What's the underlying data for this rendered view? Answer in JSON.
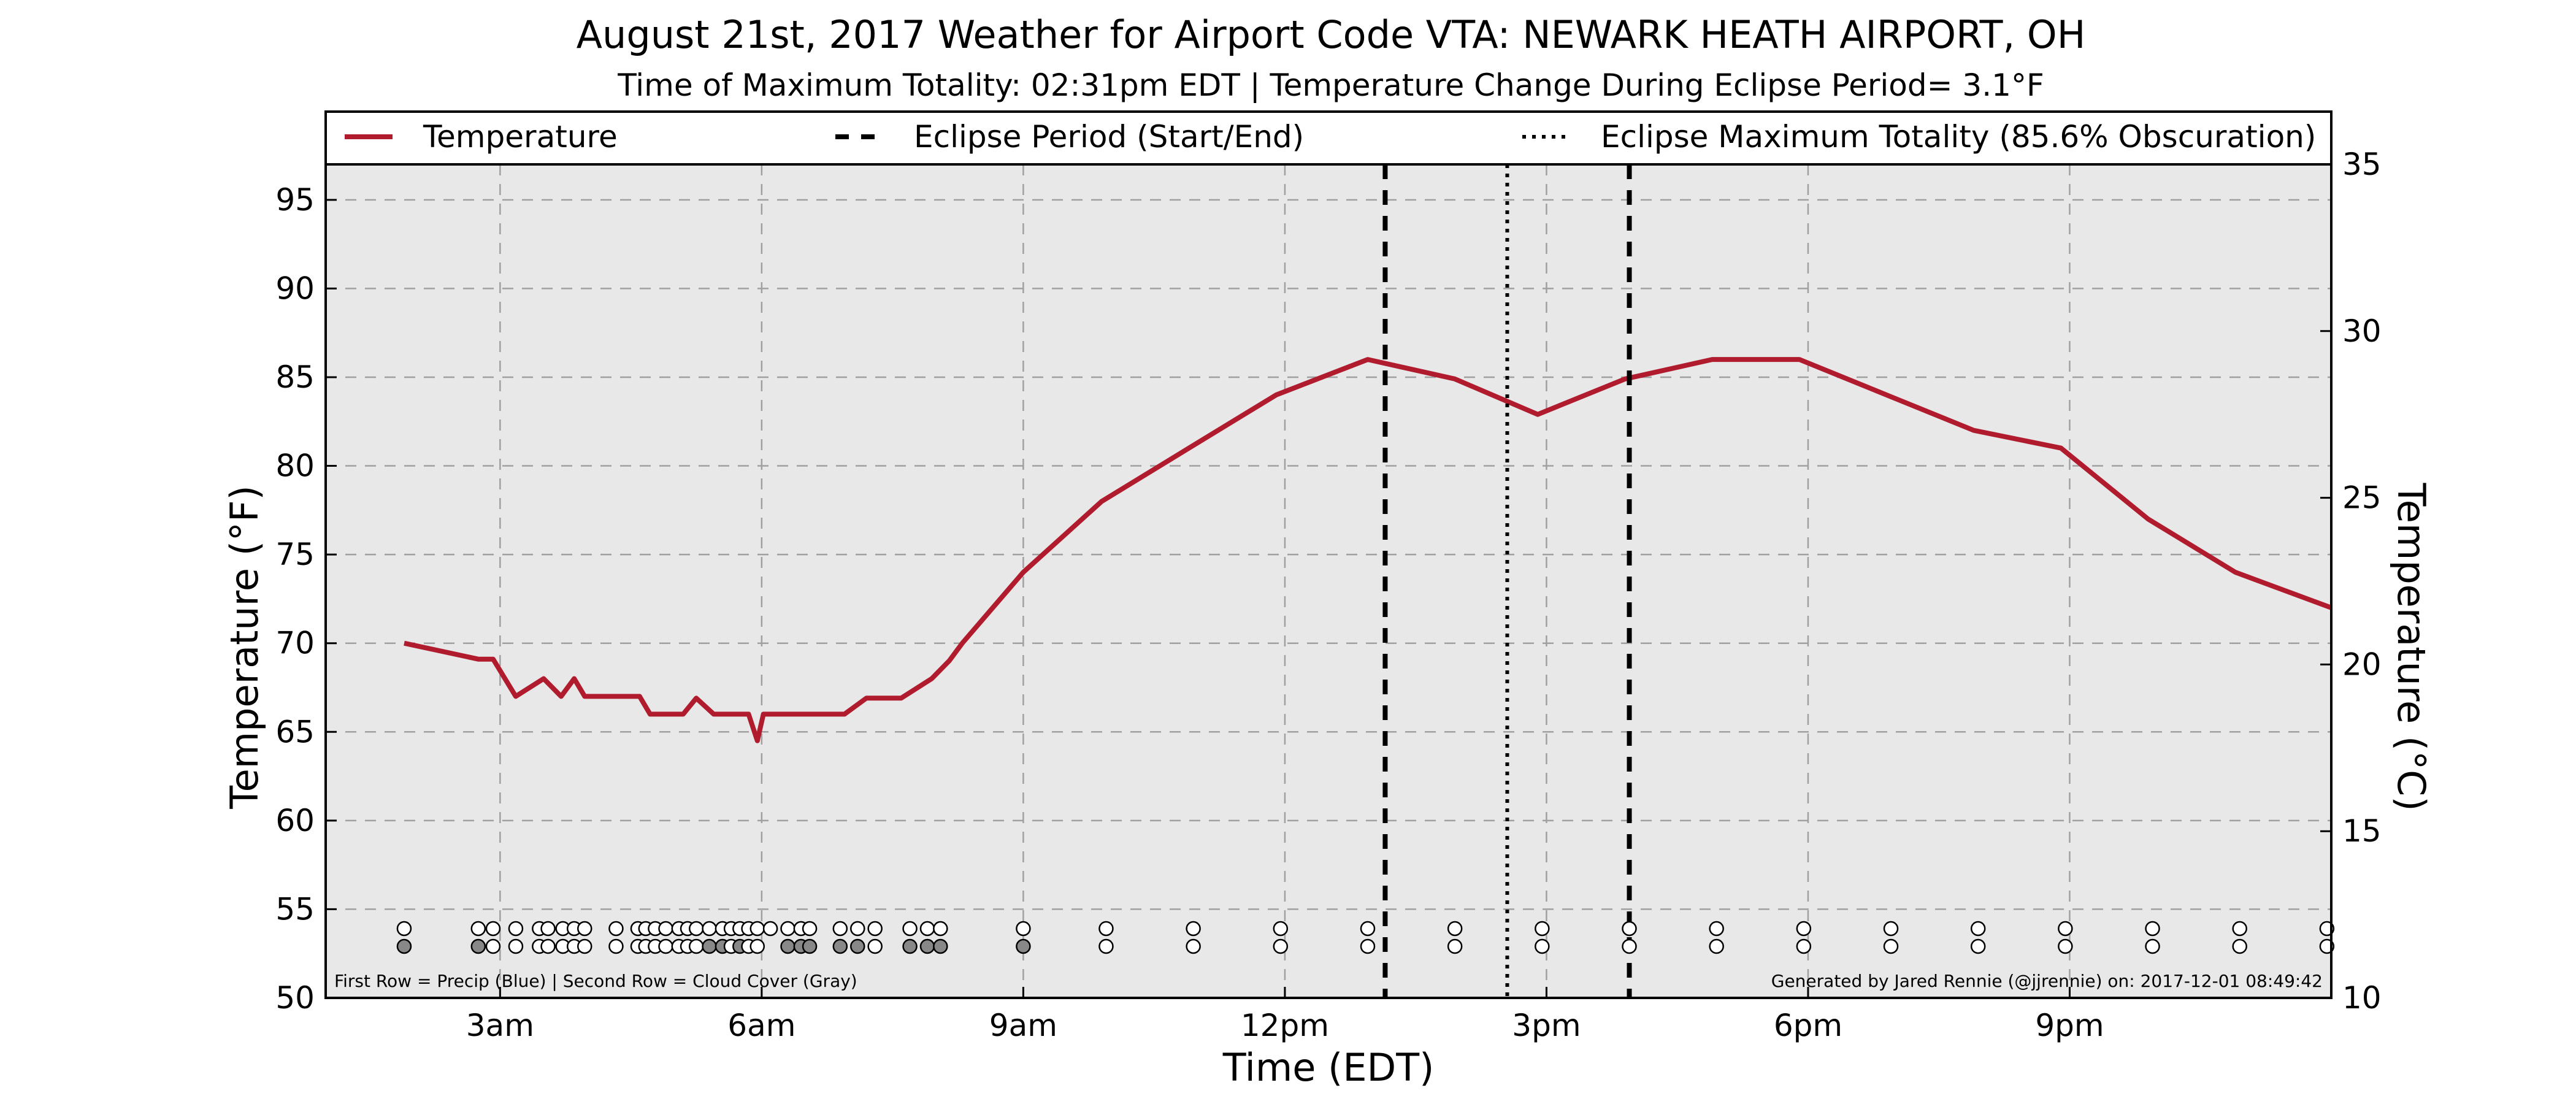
{
  "chart_data": {
    "type": "line",
    "title": "August 21st, 2017 Weather for Airport Code VTA: NEWARK HEATH AIRPORT, OH",
    "subtitle": "Time of Maximum Totality: 02:31pm EDT | Temperature Change During Eclipse Period= 3.1°F",
    "xlabel": "Time (EDT)",
    "ylabel_left": "Temperature (°F)",
    "ylabel_right": "Temperature (°C)",
    "xlim_hours": [
      1.0,
      24.0
    ],
    "ylim_f": [
      50,
      97
    ],
    "ylim_c": [
      10,
      35
    ],
    "x_tick_labels": [
      {
        "hour": 3,
        "label": "3am"
      },
      {
        "hour": 6,
        "label": "6am"
      },
      {
        "hour": 9,
        "label": "9am"
      },
      {
        "hour": 12,
        "label": "12pm"
      },
      {
        "hour": 15,
        "label": "3pm"
      },
      {
        "hour": 18,
        "label": "6pm"
      },
      {
        "hour": 21,
        "label": "9pm"
      }
    ],
    "y_ticks_f": [
      50,
      55,
      60,
      65,
      70,
      75,
      80,
      85,
      90,
      95
    ],
    "y_ticks_c": [
      10,
      15,
      20,
      25,
      30,
      35
    ],
    "grid": true,
    "legend_position": "top",
    "legend": {
      "temperature": "Temperature",
      "eclipse_period": "Eclipse Period (Start/End)",
      "max_totality": "Eclipse Maximum Totality (85.6% Obscuration)"
    },
    "series": [
      {
        "name": "Temperature",
        "color": "#b01c2e",
        "points": [
          [
            1.9,
            70
          ],
          [
            2.75,
            69.1
          ],
          [
            2.92,
            69.1
          ],
          [
            3.18,
            67
          ],
          [
            3.5,
            68
          ],
          [
            3.7,
            67
          ],
          [
            3.85,
            68
          ],
          [
            3.97,
            67
          ],
          [
            4.2,
            67
          ],
          [
            4.6,
            67
          ],
          [
            4.72,
            66
          ],
          [
            5.1,
            66
          ],
          [
            5.25,
            66.9
          ],
          [
            5.45,
            66
          ],
          [
            5.6,
            66
          ],
          [
            5.85,
            66
          ],
          [
            5.95,
            64.5
          ],
          [
            6.02,
            66
          ],
          [
            6.2,
            66
          ],
          [
            6.55,
            66
          ],
          [
            6.95,
            66
          ],
          [
            7.2,
            66.9
          ],
          [
            7.6,
            66.9
          ],
          [
            7.95,
            68
          ],
          [
            8.15,
            69
          ],
          [
            8.3,
            70
          ],
          [
            9.0,
            74
          ],
          [
            9.9,
            78
          ],
          [
            10.9,
            81
          ],
          [
            11.9,
            84
          ],
          [
            12.95,
            86
          ],
          [
            13.95,
            84.9
          ],
          [
            14.9,
            82.9
          ],
          [
            15.9,
            84.9
          ],
          [
            16.9,
            86
          ],
          [
            17.9,
            86
          ],
          [
            18.9,
            84
          ],
          [
            19.9,
            82
          ],
          [
            20.9,
            81
          ],
          [
            21.9,
            77
          ],
          [
            22.9,
            74
          ],
          [
            24.0,
            72
          ]
        ]
      }
    ],
    "eclipse_start_hour": 13.15,
    "eclipse_end_hour": 15.95,
    "max_totality_hour": 14.55,
    "eclipse_line_color": "#000000",
    "precip_row_hours": [
      1.9,
      2.75,
      2.92,
      3.18,
      3.45,
      3.55,
      3.72,
      3.85,
      3.97,
      4.33,
      4.58,
      4.67,
      4.78,
      4.9,
      5.05,
      5.15,
      5.25,
      5.4,
      5.55,
      5.65,
      5.75,
      5.85,
      5.95,
      6.1,
      6.3,
      6.45,
      6.55,
      6.9,
      7.1,
      7.3,
      7.7,
      7.9,
      8.05,
      9.0,
      9.95,
      10.95,
      11.95,
      12.95,
      13.95,
      14.95,
      15.95,
      16.95,
      17.95,
      18.95,
      19.95,
      20.95,
      21.95,
      22.95,
      23.95
    ],
    "precip_color": "#ffffff",
    "cloud_row": [
      [
        1.9,
        "#888888"
      ],
      [
        2.75,
        "#888888"
      ],
      [
        2.92,
        "#ffffff"
      ],
      [
        3.18,
        "#ffffff"
      ],
      [
        3.45,
        "#ffffff"
      ],
      [
        3.55,
        "#ffffff"
      ],
      [
        3.72,
        "#ffffff"
      ],
      [
        3.85,
        "#ffffff"
      ],
      [
        3.97,
        "#ffffff"
      ],
      [
        4.33,
        "#ffffff"
      ],
      [
        4.58,
        "#ffffff"
      ],
      [
        4.67,
        "#ffffff"
      ],
      [
        4.78,
        "#ffffff"
      ],
      [
        4.9,
        "#ffffff"
      ],
      [
        5.05,
        "#ffffff"
      ],
      [
        5.15,
        "#ffffff"
      ],
      [
        5.25,
        "#ffffff"
      ],
      [
        5.4,
        "#888888"
      ],
      [
        5.55,
        "#888888"
      ],
      [
        5.65,
        "#ffffff"
      ],
      [
        5.75,
        "#888888"
      ],
      [
        5.85,
        "#ffffff"
      ],
      [
        5.95,
        "#ffffff"
      ],
      [
        6.3,
        "#888888"
      ],
      [
        6.45,
        "#888888"
      ],
      [
        6.55,
        "#888888"
      ],
      [
        6.9,
        "#888888"
      ],
      [
        7.1,
        "#888888"
      ],
      [
        7.3,
        "#ffffff"
      ],
      [
        7.7,
        "#888888"
      ],
      [
        7.9,
        "#888888"
      ],
      [
        8.05,
        "#888888"
      ],
      [
        9.0,
        "#888888"
      ],
      [
        9.95,
        "#ffffff"
      ],
      [
        10.95,
        "#ffffff"
      ],
      [
        11.95,
        "#ffffff"
      ],
      [
        12.95,
        "#ffffff"
      ],
      [
        13.95,
        "#ffffff"
      ],
      [
        14.95,
        "#ffffff"
      ],
      [
        15.95,
        "#ffffff"
      ],
      [
        16.95,
        "#ffffff"
      ],
      [
        17.95,
        "#ffffff"
      ],
      [
        18.95,
        "#ffffff"
      ],
      [
        19.95,
        "#ffffff"
      ],
      [
        20.95,
        "#ffffff"
      ],
      [
        21.95,
        "#ffffff"
      ],
      [
        22.95,
        "#ffffff"
      ],
      [
        23.95,
        "#ffffff"
      ]
    ],
    "row_note": "First Row = Precip (Blue) | Second Row = Cloud Cover (Gray)",
    "credit": "Generated by Jared Rennie (@jjrennie) on: 2017-12-01 08:49:42",
    "plot_background": "#e8e8e8"
  }
}
